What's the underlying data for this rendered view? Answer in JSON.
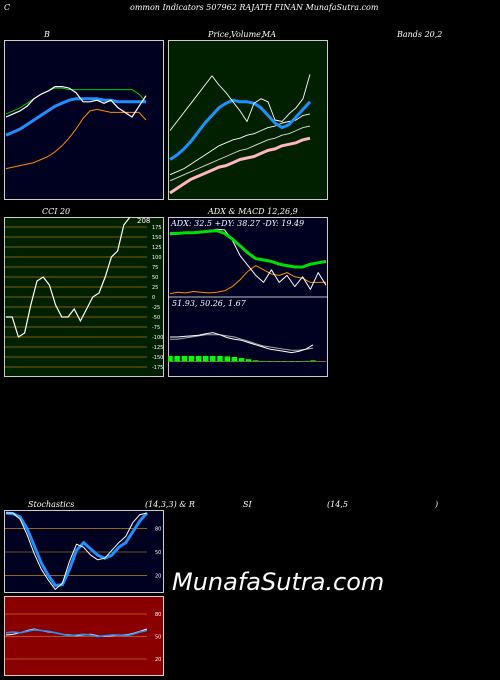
{
  "header": {
    "c": "C",
    "title": "ommon  Indicators 507962  RAJATH FINAN  MunafaSutra.com"
  },
  "labels": {
    "b": "B",
    "price": "Price,",
    "volume": "Volume,",
    "ma": "MA",
    "bands": "Bands 20,2",
    "cci": "CCI 20",
    "adx_macd": "ADX  & MACD 12,26,9",
    "stoch_left": "Stochastics",
    "stoch_mid": "(14,3,3) & R",
    "stoch_si": "SI",
    "stoch_right": "(14,5",
    "stoch_close": ")"
  },
  "watermark": "MunafaSutra.com",
  "colors": {
    "bg": "#000000",
    "bollinger_bg": "#000020",
    "ma_bg": "#002000",
    "cci_bg": "#002000",
    "stoch_bg": "#000020",
    "rsi_bg": "#8a0000",
    "price": "#ffffff",
    "band_upper": "#00cc00",
    "band_mid": "#1e90ff",
    "band_lower": "#ff8c00"
  },
  "chart_data": [
    {
      "id": "bollinger",
      "type": "line",
      "title": "B",
      "ylim": [
        0,
        100
      ],
      "x": [
        0,
        1,
        2,
        3,
        4,
        5,
        6,
        7,
        8,
        9,
        10,
        11,
        12,
        13,
        14,
        15,
        16,
        17,
        18,
        19,
        20
      ],
      "series": [
        {
          "values": [
            52,
            54,
            56,
            59,
            64,
            67,
            69,
            72,
            72,
            71,
            68,
            62,
            62,
            63,
            61,
            63,
            58,
            55,
            52,
            59,
            66
          ],
          "color": "#ffffff"
        },
        {
          "values": [
            54,
            56,
            58,
            61,
            64,
            67,
            69,
            71,
            71,
            70,
            70,
            70,
            70,
            70,
            70,
            70,
            70,
            70,
            70,
            67,
            62
          ],
          "color": "#00cc00"
        },
        {
          "values": [
            40,
            42,
            44,
            47,
            50,
            53,
            56,
            59,
            61,
            63,
            64,
            64,
            64,
            64,
            63,
            63,
            62,
            62,
            62,
            62,
            62
          ],
          "color": "#1e90ff"
        },
        {
          "values": [
            18,
            19,
            20,
            21,
            22,
            24,
            26,
            29,
            33,
            38,
            44,
            51,
            56,
            57,
            56,
            55,
            55,
            55,
            55,
            55,
            50
          ],
          "color": "#ff8c00"
        }
      ]
    },
    {
      "id": "price_ma",
      "type": "line",
      "title": "Price, Volume, MA",
      "ylim": [
        0,
        100
      ],
      "x": [
        0,
        1,
        2,
        3,
        4,
        5,
        6,
        7,
        8,
        9,
        10,
        11,
        12,
        13,
        14,
        15,
        16,
        17,
        18,
        19,
        20
      ],
      "series": [
        {
          "values": [
            43,
            49,
            55,
            61,
            67,
            73,
            79,
            73,
            68,
            62,
            56,
            49,
            61,
            64,
            62,
            50,
            49,
            54,
            58,
            64,
            80
          ],
          "color": "#ffffff"
        },
        {
          "values": [
            24,
            27,
            31,
            36,
            42,
            48,
            53,
            58,
            61,
            63,
            62,
            62,
            61,
            58,
            53,
            48,
            45,
            47,
            52,
            57,
            62
          ],
          "color": "#1e90ff"
        },
        {
          "values": [
            14,
            16,
            18,
            21,
            24,
            27,
            30,
            33,
            35,
            37,
            38,
            40,
            41,
            43,
            45,
            46,
            48,
            49,
            50,
            53,
            54
          ],
          "color": "#ffffff"
        },
        {
          "values": [
            10,
            12,
            14,
            16,
            18,
            20,
            22,
            24,
            26,
            28,
            30,
            31,
            33,
            35,
            37,
            38,
            40,
            41,
            43,
            45,
            46
          ],
          "color": "#dddddd"
        },
        {
          "values": [
            2,
            5,
            8,
            11,
            13,
            15,
            17,
            19,
            20,
            22,
            24,
            25,
            26,
            28,
            30,
            31,
            33,
            34,
            35,
            37,
            38
          ],
          "color": "#ffb6c1"
        }
      ]
    },
    {
      "id": "cci",
      "type": "line",
      "title": "CCI 20",
      "ylim": [
        -175,
        175
      ],
      "ticks": [
        "175",
        "150",
        "125",
        "100",
        "75",
        "50",
        "25",
        "0",
        "-25",
        "-50",
        "-75",
        "-100",
        "-125",
        "-150",
        "-175"
      ],
      "last_value_label": "208",
      "x": [
        0,
        1,
        2,
        3,
        4,
        5,
        6,
        7,
        8,
        9,
        10,
        11,
        12,
        13,
        14,
        15,
        16,
        17,
        18,
        19,
        20
      ],
      "values": [
        -50,
        -50,
        -100,
        -90,
        -20,
        40,
        50,
        30,
        -20,
        -50,
        -50,
        -30,
        -60,
        -30,
        0,
        10,
        50,
        100,
        115,
        180,
        208
      ]
    },
    {
      "id": "adx_macd",
      "type": "line",
      "title": "ADX & MACD 12,26,9",
      "readouts": {
        "adx": "ADX: 32.5  +DY: 38.27  -DY: 19.49",
        "macd": "51.93,  50.26,  1.67"
      },
      "adx": {
        "ylim": [
          0,
          100
        ],
        "x": [
          0,
          1,
          2,
          3,
          4,
          5,
          6,
          7,
          8,
          9,
          10,
          11,
          12,
          13,
          14,
          15,
          16,
          17,
          18,
          19,
          20
        ],
        "series": [
          {
            "values": [
              88,
              88,
              89,
              89,
              90,
              91,
              92,
              88,
              80,
              70,
              60,
              52,
              50,
              48,
              44,
              42,
              40,
              40,
              44,
              46,
              48
            ],
            "color": "#00e000"
          },
          {
            "values": [
              86,
              87,
              88,
              89,
              90,
              92,
              94,
              93,
              78,
              56,
              42,
              28,
              18,
              36,
              18,
              28,
              12,
              26,
              8,
              32,
              14
            ],
            "color": "#ffffff"
          },
          {
            "values": [
              2,
              4,
              3,
              5,
              4,
              3,
              4,
              6,
              12,
              22,
              34,
              42,
              36,
              30,
              28,
              32,
              26,
              24,
              18,
              18,
              18
            ],
            "color": "#ff8c00"
          }
        ]
      },
      "macd": {
        "ylim": [
          -10,
          80
        ],
        "x": [
          0,
          1,
          2,
          3,
          4,
          5,
          6,
          7,
          8,
          9,
          10,
          11,
          12,
          13,
          14,
          15,
          16,
          17,
          18,
          19,
          20
        ],
        "macd_line": [
          44,
          44,
          45,
          46,
          47,
          50,
          52,
          48,
          43,
          40,
          38,
          34,
          30,
          26,
          22,
          20,
          18,
          16,
          18,
          22,
          30
        ],
        "signal_line": [
          40,
          40,
          42,
          44,
          46,
          48,
          48,
          48,
          46,
          44,
          40,
          36,
          32,
          28,
          26,
          24,
          22,
          20,
          20,
          22,
          24
        ],
        "histogram": [
          10,
          10,
          10,
          10,
          10,
          10,
          10,
          10,
          9,
          8,
          6,
          4,
          2,
          1,
          0,
          0,
          0,
          0,
          0,
          1,
          2
        ]
      }
    },
    {
      "id": "stochastics",
      "type": "line",
      "title": "Stochastics (14,3,3)",
      "ylim": [
        0,
        100
      ],
      "ticks": [
        "80",
        "50",
        "20"
      ],
      "x": [
        0,
        1,
        2,
        3,
        4,
        5,
        6,
        7,
        8,
        9,
        10,
        11,
        12,
        13,
        14,
        15,
        16,
        17,
        18,
        19,
        20
      ],
      "series": [
        {
          "values": [
            100,
            99,
            95,
            80,
            58,
            36,
            20,
            7,
            8,
            28,
            52,
            62,
            54,
            46,
            42,
            46,
            56,
            62,
            76,
            90,
            100
          ],
          "color": "#1e90ff"
        },
        {
          "values": [
            100,
            100,
            92,
            72,
            48,
            28,
            14,
            2,
            10,
            38,
            60,
            56,
            46,
            40,
            42,
            52,
            62,
            70,
            88,
            98,
            100
          ],
          "color": "#ffffff"
        }
      ]
    },
    {
      "id": "rsi",
      "type": "line",
      "title": "RSI (14,5)",
      "ylim": [
        0,
        100
      ],
      "ticks": [
        "80",
        "50",
        "20"
      ],
      "x": [
        0,
        1,
        2,
        3,
        4,
        5,
        6,
        7,
        8,
        9,
        10,
        11,
        12,
        13,
        14,
        15,
        16,
        17,
        18,
        19,
        20
      ],
      "series": [
        {
          "values": [
            55,
            56,
            55,
            57,
            59,
            58,
            57,
            55,
            53,
            51,
            52,
            53,
            52,
            50,
            51,
            52,
            52,
            51,
            53,
            56,
            58
          ],
          "color": "#1e90ff"
        },
        {
          "values": [
            52,
            53,
            55,
            58,
            60,
            58,
            56,
            55,
            53,
            52,
            51,
            52,
            53,
            51,
            50,
            51,
            52,
            52,
            54,
            57,
            60
          ],
          "color": "#ffffff"
        }
      ]
    }
  ]
}
